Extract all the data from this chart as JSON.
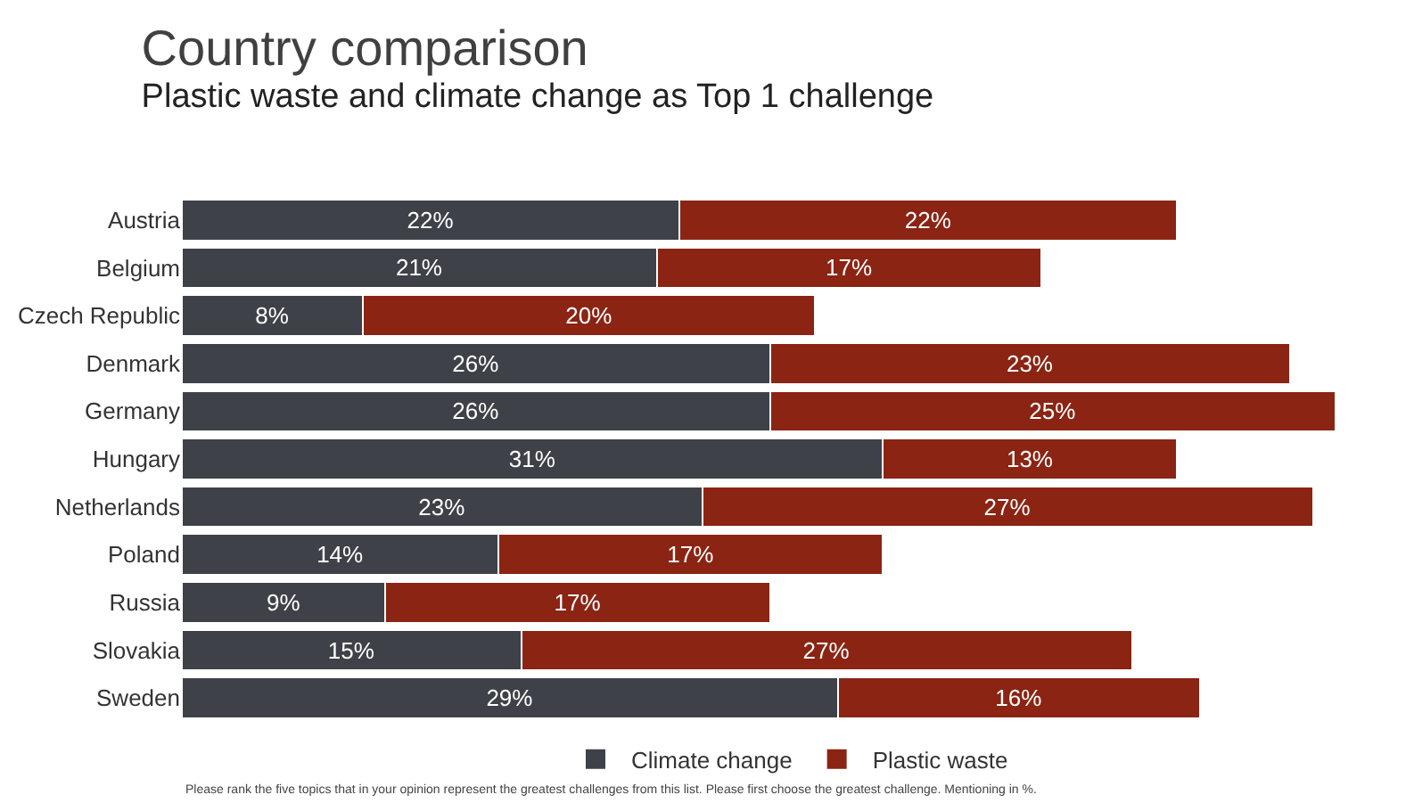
{
  "chart_data": {
    "type": "bar",
    "orientation": "horizontal",
    "stacked": true,
    "title": "Country comparison",
    "subtitle": "Plastic waste and climate change as Top 1 challenge",
    "categories": [
      "Austria",
      "Belgium",
      "Czech Republic",
      "Denmark",
      "Germany",
      "Hungary",
      "Netherlands",
      "Poland",
      "Russia",
      "Slovakia",
      "Sweden"
    ],
    "series": [
      {
        "name": "Climate change",
        "color": "#3f4148",
        "values": [
          22,
          21,
          8,
          26,
          26,
          31,
          23,
          14,
          9,
          15,
          29
        ],
        "value_labels": [
          "22%",
          "21%",
          "8%",
          "26%",
          "26%",
          "31%",
          "23%",
          "14%",
          "9%",
          "15%",
          "29%"
        ]
      },
      {
        "name": "Plastic waste",
        "color": "#8b2413",
        "values": [
          22,
          17,
          20,
          23,
          25,
          13,
          27,
          17,
          17,
          27,
          16
        ],
        "value_labels": [
          "22%",
          "17%",
          "20%",
          "23%",
          "25%",
          "13%",
          "27%",
          "17%",
          "17%",
          "27%",
          "16%"
        ]
      }
    ],
    "legend": "bottom",
    "annotations": [
      "Please rank the five topics that in your opinion represent the greatest challenges from this list. Please first choose the greatest challenge. Mentioning in %."
    ]
  }
}
